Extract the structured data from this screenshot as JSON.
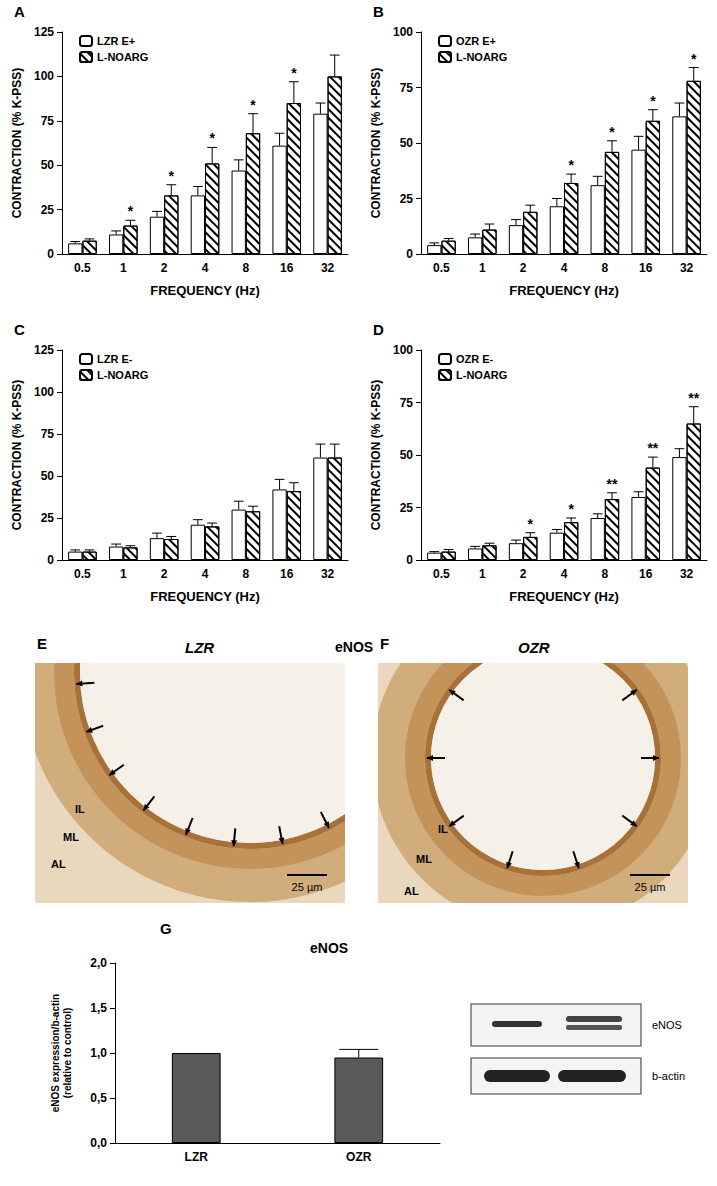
{
  "chart_data": [
    {
      "type": "bar",
      "panel": "A",
      "xlabel": "FREQUENCY (Hz)",
      "ylabel": "CONTRACTION (% K-PSS)",
      "categories": [
        "0.5",
        "1",
        "2",
        "4",
        "8",
        "16",
        "32"
      ],
      "series": [
        {
          "name": "LZR E+",
          "color": "#ffffff",
          "values": [
            6,
            11,
            21,
            33,
            47,
            61,
            79
          ],
          "errors": [
            1,
            2,
            3,
            5,
            6,
            7,
            6
          ],
          "significance": [
            null,
            null,
            null,
            null,
            null,
            null,
            null
          ]
        },
        {
          "name": "L-NOARG",
          "color": "#ffffff",
          "values": [
            7.5,
            16,
            33,
            51,
            68,
            85,
            100
          ],
          "errors": [
            1,
            3,
            6,
            9,
            11,
            12,
            12
          ],
          "significance": [
            null,
            "*",
            "*",
            "*",
            "*",
            "*",
            null
          ]
        }
      ],
      "ylim": [
        0,
        125
      ],
      "yticks": [
        0,
        25,
        50,
        75,
        100,
        125
      ],
      "grid": false,
      "legend": "upper left"
    },
    {
      "type": "bar",
      "panel": "B",
      "xlabel": "FREQUENCY (Hz)",
      "ylabel": "CONTRACTION (% K-PSS)",
      "categories": [
        "0.5",
        "1",
        "2",
        "4",
        "8",
        "16",
        "32"
      ],
      "series": [
        {
          "name": "OZR E+",
          "color": "#ffffff",
          "values": [
            4,
            7.5,
            13,
            21.5,
            31,
            47,
            62
          ],
          "errors": [
            1,
            1.5,
            2.5,
            3.5,
            4,
            6,
            6
          ],
          "significance": [
            null,
            null,
            null,
            null,
            null,
            null,
            null
          ]
        },
        {
          "name": "L-NOARG",
          "color": "#ffffff",
          "values": [
            6,
            11,
            19,
            32,
            46,
            60,
            78
          ],
          "errors": [
            1,
            2.5,
            3,
            4,
            5,
            5,
            6
          ],
          "significance": [
            null,
            null,
            null,
            "*",
            "*",
            "*",
            "*"
          ]
        }
      ],
      "ylim": [
        0,
        100
      ],
      "yticks": [
        0,
        25,
        50,
        75,
        100
      ],
      "grid": false,
      "legend": "upper left"
    },
    {
      "type": "bar",
      "panel": "C",
      "xlabel": "FREQUENCY (Hz)",
      "ylabel": "CONTRACTION (% K-PSS)",
      "categories": [
        "0.5",
        "1",
        "2",
        "4",
        "8",
        "16",
        "32"
      ],
      "series": [
        {
          "name": "LZR E-",
          "color": "#ffffff",
          "values": [
            5,
            8,
            13,
            21,
            30,
            42,
            61
          ],
          "errors": [
            1,
            1.5,
            3,
            3,
            5,
            6,
            8
          ],
          "significance": [
            null,
            null,
            null,
            null,
            null,
            null,
            null
          ]
        },
        {
          "name": "L-NOARG",
          "color": "#ffffff",
          "values": [
            5,
            7.5,
            12.5,
            20,
            29,
            41,
            61
          ],
          "errors": [
            1,
            1,
            1.5,
            2,
            3,
            5,
            8
          ],
          "significance": [
            null,
            null,
            null,
            null,
            null,
            null,
            null
          ]
        }
      ],
      "ylim": [
        0,
        125
      ],
      "yticks": [
        0,
        25,
        50,
        75,
        100,
        125
      ],
      "grid": false,
      "legend": "upper left"
    },
    {
      "type": "bar",
      "panel": "D",
      "xlabel": "FREQUENCY (Hz)",
      "ylabel": "CONTRACTION (% K-PSS)",
      "categories": [
        "0.5",
        "1",
        "2",
        "4",
        "8",
        "16",
        "32"
      ],
      "series": [
        {
          "name": "OZR E-",
          "color": "#ffffff",
          "values": [
            3.5,
            5.5,
            8,
            13,
            20,
            30,
            49
          ],
          "errors": [
            0.5,
            1,
            1.5,
            1.5,
            2,
            2.5,
            4
          ],
          "significance": [
            null,
            null,
            null,
            null,
            null,
            null,
            null
          ]
        },
        {
          "name": "L-NOARG",
          "color": "#ffffff",
          "values": [
            4,
            7,
            11,
            18,
            29,
            44,
            65
          ],
          "errors": [
            1,
            1,
            2,
            2,
            3,
            5,
            8
          ],
          "significance": [
            null,
            null,
            "*",
            "*",
            "**",
            "**",
            "**"
          ]
        }
      ],
      "ylim": [
        0,
        100
      ],
      "yticks": [
        0,
        25,
        50,
        75,
        100
      ],
      "grid": false,
      "legend": "upper left"
    },
    {
      "type": "bar",
      "panel": "G",
      "title": "eNOS",
      "ylabel": "eNOS expression/b-actin\n(relative to control)",
      "categories": [
        "LZR",
        "OZR"
      ],
      "series": [
        {
          "color": "#595959",
          "values": [
            1.0,
            0.95
          ],
          "errors": [
            null,
            0.09
          ]
        }
      ],
      "ylim": [
        0,
        2
      ],
      "yticks": [
        {
          "value": 0,
          "label": "0,0"
        },
        {
          "value": 0.5,
          "label": "0,5"
        },
        {
          "value": 1,
          "label": "1,0"
        },
        {
          "value": 1.5,
          "label": "1,5"
        },
        {
          "value": 2,
          "label": "2,0"
        }
      ],
      "grid": false
    }
  ],
  "images": [
    {
      "panel": "E",
      "title": "LZR",
      "caption": "eNOS",
      "labels": [
        "IL",
        "ML",
        "AL"
      ],
      "scale_bar": "25 µm"
    },
    {
      "panel": "F",
      "title": "OZR",
      "labels": [
        "IL",
        "ML",
        "AL"
      ],
      "scale_bar": "25 µm"
    }
  ],
  "blot": {
    "rows": [
      "eNOS",
      "b-actin"
    ]
  }
}
